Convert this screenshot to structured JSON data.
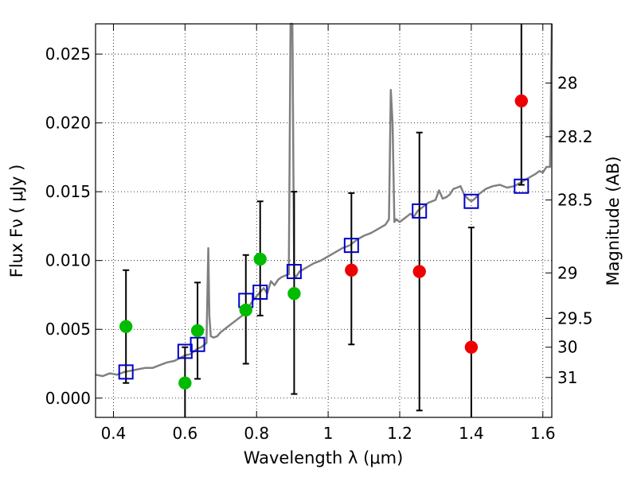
{
  "chart_data": {
    "type": "scatter",
    "title": "",
    "xlabel": "Wavelength  λ (μm)",
    "ylabel": "Flux  Fν  ( μJy )",
    "y2label": "Magnitude (AB)",
    "xlim": [
      0.35,
      1.625
    ],
    "ylim": [
      -0.0014,
      0.0272
    ],
    "grid": true,
    "x_ticks": [
      {
        "value": 0.4,
        "label": "0.4"
      },
      {
        "value": 0.6,
        "label": "0.6"
      },
      {
        "value": 0.8,
        "label": "0.8"
      },
      {
        "value": 1.0,
        "label": "1"
      },
      {
        "value": 1.2,
        "label": "1.2"
      },
      {
        "value": 1.4,
        "label": "1.4"
      },
      {
        "value": 1.6,
        "label": "1.6"
      }
    ],
    "y_ticks": [
      {
        "value": 0.0,
        "label": "0.000"
      },
      {
        "value": 0.005,
        "label": "0.005"
      },
      {
        "value": 0.01,
        "label": "0.010"
      },
      {
        "value": 0.015,
        "label": "0.015"
      },
      {
        "value": 0.02,
        "label": "0.020"
      },
      {
        "value": 0.025,
        "label": "0.025"
      }
    ],
    "y2_ticks": [
      {
        "label": "28",
        "flux": 0.0229
      },
      {
        "label": "28.2",
        "flux": 0.019
      },
      {
        "label": "28.5",
        "flux": 0.0144
      },
      {
        "label": "29",
        "flux": 0.0091
      },
      {
        "label": "29.5",
        "flux": 0.0058
      },
      {
        "label": "30",
        "flux": 0.0037
      },
      {
        "label": "31",
        "flux": 0.0015
      }
    ],
    "template_spectrum": {
      "color": "#808080",
      "points": [
        [
          0.35,
          0.0017
        ],
        [
          0.37,
          0.0016
        ],
        [
          0.39,
          0.0018
        ],
        [
          0.41,
          0.0017
        ],
        [
          0.43,
          0.0019
        ],
        [
          0.45,
          0.002
        ],
        [
          0.47,
          0.0021
        ],
        [
          0.49,
          0.0022
        ],
        [
          0.51,
          0.0022
        ],
        [
          0.53,
          0.0024
        ],
        [
          0.55,
          0.0026
        ],
        [
          0.57,
          0.0027
        ],
        [
          0.585,
          0.0029
        ],
        [
          0.6,
          0.0031
        ],
        [
          0.615,
          0.0032
        ],
        [
          0.625,
          0.0034
        ],
        [
          0.635,
          0.0036
        ],
        [
          0.645,
          0.0037
        ],
        [
          0.655,
          0.0039
        ],
        [
          0.66,
          0.004
        ],
        [
          0.665,
          0.0109
        ],
        [
          0.668,
          0.006
        ],
        [
          0.672,
          0.0045
        ],
        [
          0.68,
          0.0044
        ],
        [
          0.69,
          0.0045
        ],
        [
          0.7,
          0.0048
        ],
        [
          0.72,
          0.0052
        ],
        [
          0.74,
          0.0056
        ],
        [
          0.76,
          0.006
        ],
        [
          0.77,
          0.0064
        ],
        [
          0.78,
          0.0067
        ],
        [
          0.79,
          0.0071
        ],
        [
          0.8,
          0.0074
        ],
        [
          0.81,
          0.0077
        ],
        [
          0.82,
          0.008
        ],
        [
          0.83,
          0.0076
        ],
        [
          0.84,
          0.0085
        ],
        [
          0.85,
          0.0082
        ],
        [
          0.86,
          0.0086
        ],
        [
          0.87,
          0.0088
        ],
        [
          0.88,
          0.0089
        ],
        [
          0.89,
          0.009
        ],
        [
          0.895,
          0.0272
        ],
        [
          0.9,
          0.0272
        ],
        [
          0.905,
          0.009
        ],
        [
          0.91,
          0.0088
        ],
        [
          0.92,
          0.0092
        ],
        [
          0.94,
          0.0095
        ],
        [
          0.96,
          0.0098
        ],
        [
          0.98,
          0.01
        ],
        [
          1.0,
          0.0103
        ],
        [
          1.02,
          0.0106
        ],
        [
          1.04,
          0.0109
        ],
        [
          1.06,
          0.0111
        ],
        [
          1.08,
          0.0115
        ],
        [
          1.1,
          0.0118
        ],
        [
          1.12,
          0.012
        ],
        [
          1.14,
          0.0123
        ],
        [
          1.16,
          0.0126
        ],
        [
          1.17,
          0.013
        ],
        [
          1.175,
          0.0224
        ],
        [
          1.18,
          0.02
        ],
        [
          1.185,
          0.0128
        ],
        [
          1.19,
          0.013
        ],
        [
          1.2,
          0.0128
        ],
        [
          1.21,
          0.013
        ],
        [
          1.22,
          0.0132
        ],
        [
          1.23,
          0.0134
        ],
        [
          1.24,
          0.0132
        ],
        [
          1.25,
          0.0136
        ],
        [
          1.26,
          0.0138
        ],
        [
          1.27,
          0.014
        ],
        [
          1.28,
          0.0142
        ],
        [
          1.29,
          0.0143
        ],
        [
          1.3,
          0.0144
        ],
        [
          1.31,
          0.0151
        ],
        [
          1.32,
          0.0145
        ],
        [
          1.33,
          0.0146
        ],
        [
          1.34,
          0.0148
        ],
        [
          1.35,
          0.0152
        ],
        [
          1.36,
          0.0153
        ],
        [
          1.37,
          0.0154
        ],
        [
          1.38,
          0.0148
        ],
        [
          1.39,
          0.0145
        ],
        [
          1.4,
          0.0143
        ],
        [
          1.41,
          0.0145
        ],
        [
          1.42,
          0.0148
        ],
        [
          1.44,
          0.0152
        ],
        [
          1.46,
          0.0154
        ],
        [
          1.48,
          0.0155
        ],
        [
          1.5,
          0.0153
        ],
        [
          1.52,
          0.0154
        ],
        [
          1.54,
          0.0157
        ],
        [
          1.56,
          0.016
        ],
        [
          1.58,
          0.0163
        ],
        [
          1.59,
          0.0165
        ],
        [
          1.6,
          0.0164
        ],
        [
          1.61,
          0.0168
        ],
        [
          1.62,
          0.0168
        ],
        [
          1.625,
          0.0272
        ]
      ]
    },
    "model_boxes": {
      "color": "#0000cc",
      "points": [
        [
          0.435,
          0.0019
        ],
        [
          0.6,
          0.0034
        ],
        [
          0.635,
          0.0039
        ],
        [
          0.77,
          0.0071
        ],
        [
          0.81,
          0.0077
        ],
        [
          0.905,
          0.0092
        ],
        [
          1.065,
          0.0111
        ],
        [
          1.255,
          0.0136
        ],
        [
          1.4,
          0.0143
        ],
        [
          1.54,
          0.0154
        ]
      ]
    },
    "series": [
      {
        "color": "#00bb00",
        "points": [
          {
            "x": 0.435,
            "y": 0.0052,
            "lo": 0.0011,
            "hi": 0.0093
          },
          {
            "x": 0.6,
            "y": 0.0011,
            "lo": -0.0014,
            "hi": 0.0037
          },
          {
            "x": 0.635,
            "y": 0.0049,
            "lo": 0.0014,
            "hi": 0.0084
          },
          {
            "x": 0.77,
            "y": 0.0064,
            "lo": 0.0025,
            "hi": 0.0104
          },
          {
            "x": 0.81,
            "y": 0.0101,
            "lo": 0.006,
            "hi": 0.0143
          },
          {
            "x": 0.905,
            "y": 0.0076,
            "lo": 0.0003,
            "hi": 0.015
          }
        ]
      },
      {
        "color": "#ee0000",
        "points": [
          {
            "x": 1.065,
            "y": 0.0093,
            "lo": 0.0039,
            "hi": 0.0149
          },
          {
            "x": 1.255,
            "y": 0.0092,
            "lo": -0.0009,
            "hi": 0.0193
          },
          {
            "x": 1.4,
            "y": 0.0037,
            "lo": -0.0014,
            "hi": 0.0124
          },
          {
            "x": 1.54,
            "y": 0.0216,
            "lo": 0.0155,
            "hi": 0.0272
          }
        ]
      }
    ]
  }
}
